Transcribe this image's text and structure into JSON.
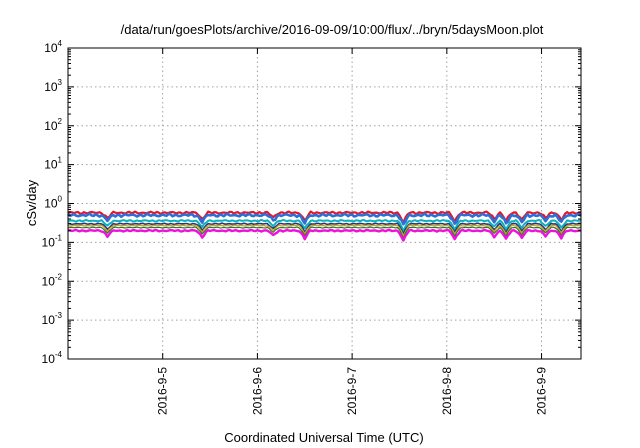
{
  "chart_data": {
    "type": "line",
    "title": "/data/run/goesPlots/archive/2016-09-09/10:00/flux/../bryn/5daysMoon.plot",
    "xlabel": "Coordinated Universal Time (UTC)",
    "ylabel": "cSv/day",
    "yscale": "log",
    "ylim": [
      0.0001,
      10000
    ],
    "xlim": [
      "2016-09-04 00:00",
      "2016-09-09 10:00"
    ],
    "grid": true,
    "y_ticks": [
      {
        "base": "10",
        "exp": "-4",
        "value": 0.0001
      },
      {
        "base": "10",
        "exp": "-3",
        "value": 0.001
      },
      {
        "base": "10",
        "exp": "-2",
        "value": 0.01
      },
      {
        "base": "10",
        "exp": "-1",
        "value": 0.1
      },
      {
        "base": "10",
        "exp": "0",
        "value": 1
      },
      {
        "base": "10",
        "exp": "1",
        "value": 10
      },
      {
        "base": "10",
        "exp": "2",
        "value": 100
      },
      {
        "base": "10",
        "exp": "3",
        "value": 1000
      },
      {
        "base": "10",
        "exp": "4",
        "value": 10000
      }
    ],
    "x_ticks": [
      {
        "label": "2016-9-5",
        "value": "2016-09-05 00:00"
      },
      {
        "label": "2016-9-6",
        "value": "2016-09-06 00:00"
      },
      {
        "label": "2016-9-7",
        "value": "2016-09-07 00:00"
      },
      {
        "label": "2016-9-8",
        "value": "2016-09-08 00:00"
      },
      {
        "label": "2016-9-9",
        "value": "2016-09-09 00:00"
      }
    ],
    "dips": [
      {
        "time": "2016-09-04 10:00",
        "factor": 0.72
      },
      {
        "time": "2016-09-05 10:00",
        "factor": 0.68
      },
      {
        "time": "2016-09-06 04:00",
        "factor": 0.75
      },
      {
        "time": "2016-09-06 12:00",
        "factor": 0.62
      },
      {
        "time": "2016-09-07 13:00",
        "factor": 0.55
      },
      {
        "time": "2016-09-08 02:00",
        "factor": 0.6
      },
      {
        "time": "2016-09-08 12:00",
        "factor": 0.7
      },
      {
        "time": "2016-09-08 15:00",
        "factor": 0.6
      },
      {
        "time": "2016-09-08 19:00",
        "factor": 0.65
      },
      {
        "time": "2016-09-09 01:00",
        "factor": 0.72
      },
      {
        "time": "2016-09-09 05:00",
        "factor": 0.65
      }
    ],
    "series": [
      {
        "color": "#e0182d",
        "level": 0.58,
        "jitter": 0.07,
        "width": 2.2
      },
      {
        "color": "#2e6fd6",
        "level": 0.5,
        "jitter": 0.09,
        "width": 2.6
      },
      {
        "color": "#10b0b8",
        "level": 0.36,
        "jitter": 0.05,
        "width": 2.0
      },
      {
        "color": "#1a3a8c",
        "level": 0.3,
        "jitter": 0.04,
        "width": 1.6
      },
      {
        "color": "#d8a020",
        "level": 0.27,
        "jitter": 0.03,
        "width": 1.4
      },
      {
        "color": "#2a7a2a",
        "level": 0.24,
        "jitter": 0.03,
        "width": 1.2
      },
      {
        "color": "#ee10dd",
        "level": 0.2,
        "jitter": 0.05,
        "width": 2.4
      }
    ]
  }
}
